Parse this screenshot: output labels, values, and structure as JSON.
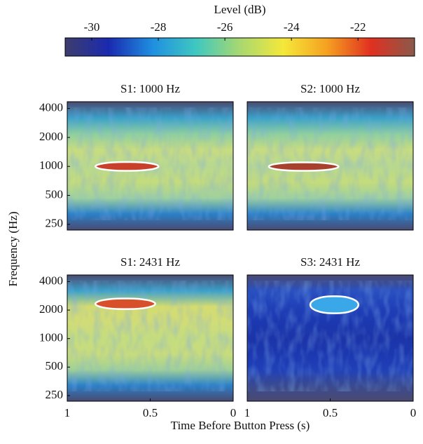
{
  "xlabel": "Time Before Button Press (s)",
  "ylabel": "Frequency (Hz)",
  "chart_data": [
    {
      "type": "colorbar",
      "title": "Level (dB)",
      "xlim": [
        -30.8,
        -20.3
      ],
      "xticks": [
        -30,
        -28,
        -26,
        -24,
        -22
      ],
      "colors": [
        "#3d3d6b",
        "#1a2ab0",
        "#1f8fe0",
        "#3fc8c0",
        "#a8d870",
        "#f5e83a",
        "#f5a020",
        "#e03020",
        "#8a5a4a"
      ]
    },
    {
      "type": "heatmap",
      "title": "S1: 1000 Hz",
      "xlim": [
        1,
        0
      ],
      "ylim": [
        218,
        4700
      ],
      "log_y": true,
      "yticks": [
        250,
        500,
        1000,
        2000,
        4000
      ],
      "background": [
        "#4a4a70",
        "#3aa0c8",
        "#8ecfa0",
        "#c8dc80",
        "#b8d890",
        "#c4dc7c",
        "#9ed0a0",
        "#2a80c8",
        "#4a4a70"
      ],
      "highlight": {
        "x": [
          0.83,
          0.45
        ],
        "y": [
          900,
          1110
        ],
        "color": "#c8402a"
      }
    },
    {
      "type": "heatmap",
      "title": "S2: 1000 Hz",
      "xlim": [
        1,
        0
      ],
      "ylim": [
        218,
        4700
      ],
      "log_y": true,
      "background": [
        "#4a4a70",
        "#3aa0c8",
        "#8ecfa0",
        "#c8dc80",
        "#b8d890",
        "#c4dc7c",
        "#9ed0a0",
        "#2a80c8",
        "#4a4a70"
      ],
      "highlight": {
        "x": [
          0.87,
          0.45
        ],
        "y": [
          900,
          1100
        ],
        "color": "#a8402e"
      }
    },
    {
      "type": "heatmap",
      "title": "S1: 2431 Hz",
      "xlim": [
        1,
        0
      ],
      "ylim": [
        218,
        4700
      ],
      "log_y": true,
      "xticks": [
        1,
        0.5,
        0
      ],
      "yticks": [
        250,
        500,
        1000,
        2000,
        4000
      ],
      "background": [
        "#4a4a70",
        "#3aa0c8",
        "#d4dc70",
        "#d0dc78",
        "#c4dc80",
        "#c8dc7c",
        "#a0d098",
        "#2a80c8",
        "#4a4a70"
      ],
      "highlight": {
        "x": [
          0.83,
          0.47
        ],
        "y": [
          2050,
          2650
        ],
        "color": "#d8502a"
      }
    },
    {
      "type": "heatmap",
      "title": "S3: 2431 Hz",
      "xlim": [
        1,
        0
      ],
      "ylim": [
        218,
        4700
      ],
      "log_y": true,
      "xticks": [
        1,
        0.5,
        0
      ],
      "background": [
        "#4a4a70",
        "#2a50c0",
        "#2040b8",
        "#1c38b0",
        "#1c34a8",
        "#1c38b0",
        "#2040b8",
        "#3a4a90",
        "#4a4a70"
      ],
      "highlight": {
        "x": [
          0.62,
          0.33
        ],
        "y": [
          1850,
          2800
        ],
        "color": "#3aa8e8"
      }
    }
  ]
}
